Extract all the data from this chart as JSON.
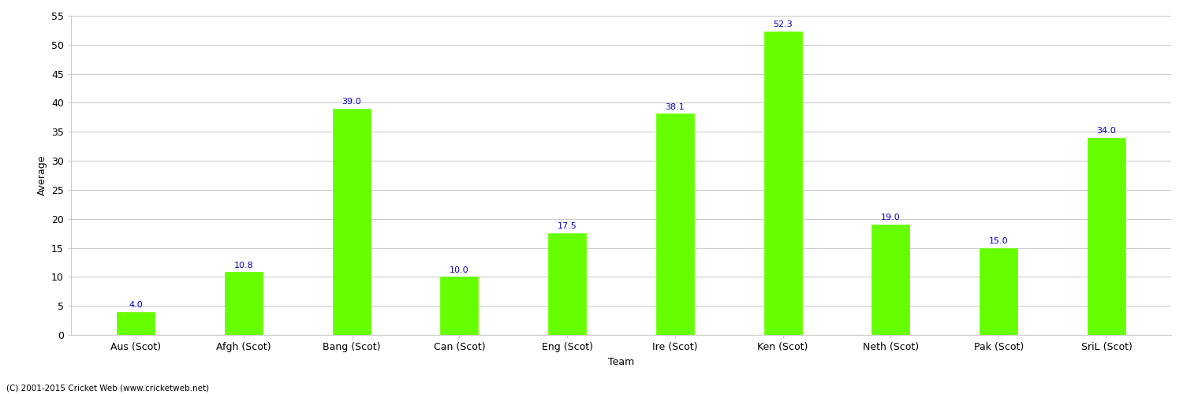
{
  "categories": [
    "Aus (Scot)",
    "Afgh (Scot)",
    "Bang (Scot)",
    "Can (Scot)",
    "Eng (Scot)",
    "Ire (Scot)",
    "Ken (Scot)",
    "Neth (Scot)",
    "Pak (Scot)",
    "SriL (Scot)"
  ],
  "values": [
    4.0,
    10.8,
    39.0,
    10.0,
    17.5,
    38.1,
    52.3,
    19.0,
    15.0,
    34.0
  ],
  "bar_color": "#66ff00",
  "bar_edgecolor": "#66ff00",
  "value_color": "#0000cc",
  "ylabel": "Average",
  "xlabel": "Team",
  "ylim": [
    0,
    55
  ],
  "yticks": [
    0,
    5,
    10,
    15,
    20,
    25,
    30,
    35,
    40,
    45,
    50,
    55
  ],
  "grid_color": "#cccccc",
  "background_color": "#ffffff",
  "font_color": "#000000",
  "copyright": "(C) 2001-2015 Cricket Web (www.cricketweb.net)",
  "value_fontsize": 8,
  "axis_fontsize": 9,
  "label_fontsize": 9,
  "bar_width": 0.35
}
